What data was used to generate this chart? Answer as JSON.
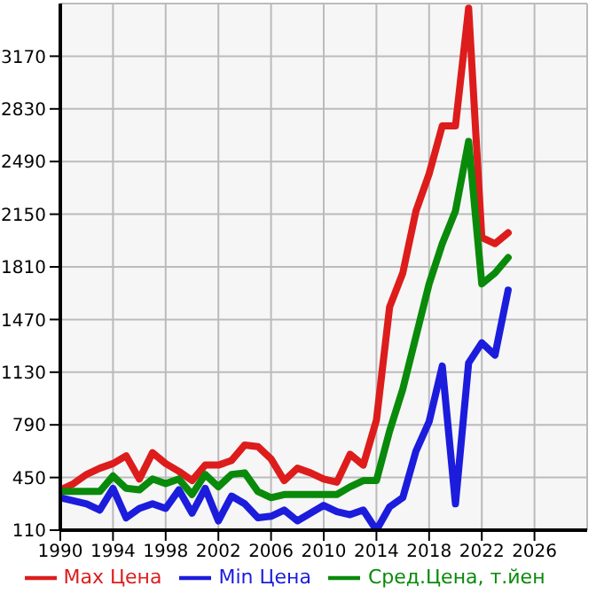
{
  "chart_data": {
    "type": "line",
    "x": [
      1990,
      1991,
      1992,
      1993,
      1994,
      1995,
      1996,
      1997,
      1998,
      1999,
      2000,
      2001,
      2002,
      2003,
      2004,
      2005,
      2006,
      2007,
      2008,
      2009,
      2010,
      2011,
      2012,
      2013,
      2014,
      2015,
      2016,
      2017,
      2018,
      2019,
      2020,
      2021,
      2022,
      2023,
      2024
    ],
    "series": [
      {
        "name": "Max Цена",
        "color": "#dd1c1c",
        "values": [
          370,
          410,
          470,
          510,
          540,
          590,
          440,
          610,
          540,
          490,
          430,
          530,
          530,
          560,
          660,
          650,
          570,
          430,
          510,
          480,
          440,
          420,
          600,
          530,
          820,
          1550,
          1770,
          2170,
          2410,
          2720,
          2720,
          3480,
          2000,
          1960,
          2030
        ]
      },
      {
        "name": "Min Цена",
        "color": "#1c1cdd",
        "values": [
          320,
          300,
          280,
          240,
          380,
          190,
          250,
          280,
          250,
          370,
          220,
          380,
          170,
          330,
          280,
          190,
          200,
          240,
          170,
          220,
          270,
          230,
          210,
          240,
          110,
          260,
          320,
          620,
          810,
          1170,
          280,
          1190,
          1320,
          1240,
          1660
        ]
      },
      {
        "name": "Сред.Цена, т.йен",
        "color": "#0a8a0a",
        "values": [
          360,
          360,
          360,
          360,
          460,
          380,
          370,
          440,
          410,
          440,
          340,
          470,
          390,
          470,
          480,
          360,
          320,
          340,
          340,
          340,
          340,
          340,
          390,
          430,
          430,
          750,
          1020,
          1360,
          1700,
          1960,
          2170,
          2620,
          1700,
          1770,
          1870
        ]
      }
    ],
    "xlim": [
      1990,
      2030
    ],
    "xticks": [
      1990,
      1994,
      1998,
      2002,
      2006,
      2010,
      2014,
      2018,
      2022,
      2026
    ],
    "ylim": [
      110,
      3510
    ],
    "yticks": [
      110,
      450,
      790,
      1130,
      1470,
      1810,
      2150,
      2490,
      2830,
      3170
    ],
    "grid": true,
    "legend": "bottom",
    "marker": "none",
    "line_style": "solid"
  }
}
